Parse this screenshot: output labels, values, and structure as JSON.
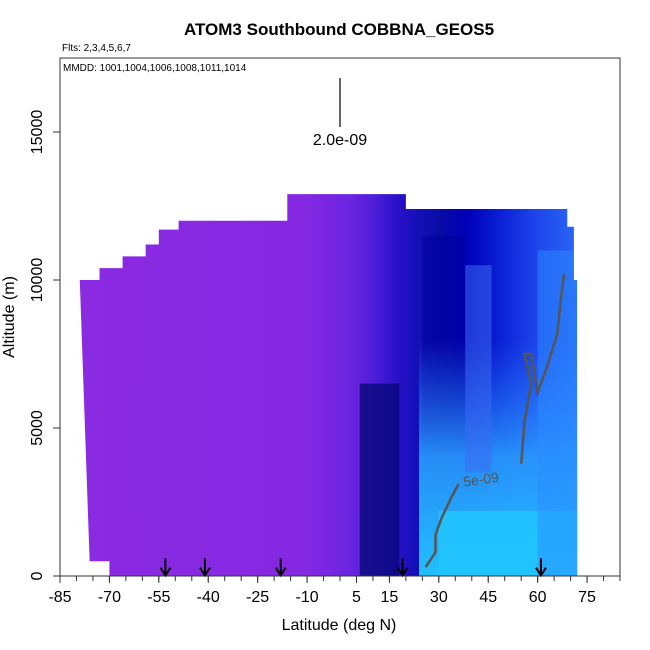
{
  "chart_data": {
    "type": "heatmap",
    "title": "ATOM3 Southbound COBBNA_GEOS5",
    "flights_label": "Flts: 2,3,4,5,6,7",
    "mmdd_label": "MMDD: 1001,1004,1006,1008,1011,1014",
    "xlabel": "Latitude (deg N)",
    "ylabel": "Altitude (m)",
    "xlim": [
      -85,
      85
    ],
    "ylim": [
      0,
      17500
    ],
    "x_tick_labels": [
      "-85",
      "-70",
      "-55",
      "-40",
      "-25",
      "-10",
      "5",
      "15",
      "30",
      "45",
      "60",
      "75"
    ],
    "x_tick_values": [
      -85,
      -70,
      -55,
      -40,
      -25,
      -10,
      5,
      15,
      30,
      45,
      60,
      75
    ],
    "y_tick_labels": [
      "0",
      "5000",
      "10000",
      "15000"
    ],
    "y_tick_values": [
      0,
      5000,
      10000,
      15000
    ],
    "scale_bar_label": "2.0e-09",
    "contour_label": "5e-09",
    "flight_arrow_latitudes": [
      -53,
      -41,
      -18,
      19,
      61
    ],
    "data_extent": {
      "top_altitude_by_latitude": [
        [
          -79,
          10000
        ],
        [
          -73,
          10400
        ],
        [
          -66,
          10800
        ],
        [
          -59,
          11200
        ],
        [
          -55,
          11700
        ],
        [
          -49,
          12000
        ],
        [
          -20,
          12000
        ],
        [
          -16,
          12900
        ],
        [
          9,
          12900
        ],
        [
          20,
          12400
        ],
        [
          66,
          12400
        ],
        [
          69,
          11800
        ],
        [
          71,
          10000
        ]
      ],
      "bottom_altitude_by_latitude": [
        [
          -76,
          500
        ],
        [
          -70,
          0
        ],
        [
          72,
          0
        ]
      ]
    },
    "color_regions": [
      {
        "lat_range": [
          -80,
          -20
        ],
        "alt_range": [
          0,
          12900
        ],
        "value_level": "low",
        "color": "#8a2be2"
      },
      {
        "lat_range": [
          -20,
          0
        ],
        "alt_range": [
          0,
          12900
        ],
        "value_level": "low-mid",
        "color": "#6a24e0"
      },
      {
        "lat_range": [
          0,
          20
        ],
        "alt_range": [
          0,
          12900
        ],
        "value_level": "mid",
        "color": "#2a10c8"
      },
      {
        "lat_range": [
          8,
          18
        ],
        "alt_range": [
          0,
          6000
        ],
        "value_level": "mid-dark",
        "color": "#0a0a8a"
      },
      {
        "lat_range": [
          20,
          72
        ],
        "alt_range": [
          0,
          12400
        ],
        "value_level": "mid-high",
        "color": "#1a2ee0"
      },
      {
        "lat_range": [
          40,
          72
        ],
        "alt_range": [
          0,
          4000
        ],
        "value_level": "high",
        "color": "#2aa8ff"
      }
    ],
    "colors": {
      "purple": "#8a2be2",
      "indigo": "#5a20d8",
      "dark_blue": "#00008b",
      "blue": "#0000cd",
      "medium_blue": "#1e50f0",
      "sky_blue": "#33aaff",
      "cyan": "#22ccff",
      "contour": "#555555"
    }
  }
}
